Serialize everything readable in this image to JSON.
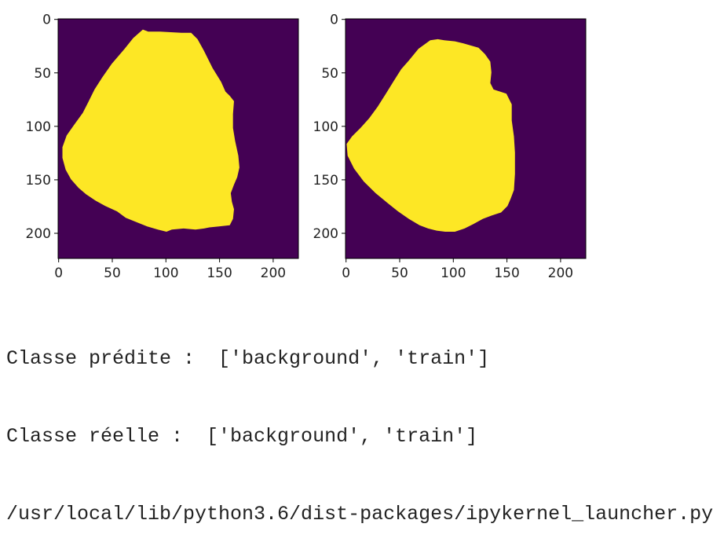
{
  "figure": {
    "image_size": 224,
    "background_color": "#440154",
    "mask_color": "#fde725",
    "panels": [
      {
        "name": "predicted-mask",
        "mask_polygon": [
          [
            79,
            10
          ],
          [
            84,
            12
          ],
          [
            95,
            12
          ],
          [
            115,
            13
          ],
          [
            124,
            13
          ],
          [
            130,
            19
          ],
          [
            136,
            30
          ],
          [
            144,
            46
          ],
          [
            152,
            59
          ],
          [
            156,
            68
          ],
          [
            160,
            72
          ],
          [
            164,
            77
          ],
          [
            163,
            89
          ],
          [
            163,
            102
          ],
          [
            165,
            114
          ],
          [
            168,
            128
          ],
          [
            169,
            139
          ],
          [
            167,
            148
          ],
          [
            164,
            155
          ],
          [
            161,
            163
          ],
          [
            162,
            171
          ],
          [
            164,
            178
          ],
          [
            163,
            187
          ],
          [
            160,
            193
          ],
          [
            150,
            194
          ],
          [
            141,
            195
          ],
          [
            136,
            196
          ],
          [
            128,
            197
          ],
          [
            117,
            196
          ],
          [
            106,
            197
          ],
          [
            101,
            199
          ],
          [
            93,
            197
          ],
          [
            83,
            194
          ],
          [
            73,
            190
          ],
          [
            63,
            186
          ],
          [
            55,
            180
          ],
          [
            44,
            175
          ],
          [
            35,
            170
          ],
          [
            26,
            164
          ],
          [
            19,
            158
          ],
          [
            12,
            150
          ],
          [
            7,
            141
          ],
          [
            4,
            130
          ],
          [
            4,
            120
          ],
          [
            8,
            109
          ],
          [
            15,
            99
          ],
          [
            23,
            88
          ],
          [
            28,
            78
          ],
          [
            34,
            66
          ],
          [
            41,
            55
          ],
          [
            50,
            42
          ],
          [
            62,
            28
          ],
          [
            70,
            18
          ]
        ]
      },
      {
        "name": "true-mask",
        "mask_polygon": [
          [
            79,
            20
          ],
          [
            86,
            19
          ],
          [
            92,
            20
          ],
          [
            102,
            21
          ],
          [
            110,
            23
          ],
          [
            117,
            25
          ],
          [
            124,
            27
          ],
          [
            130,
            33
          ],
          [
            135,
            40
          ],
          [
            136,
            50
          ],
          [
            135,
            60
          ],
          [
            138,
            66
          ],
          [
            150,
            70
          ],
          [
            155,
            80
          ],
          [
            155,
            95
          ],
          [
            157,
            110
          ],
          [
            158,
            125
          ],
          [
            158,
            145
          ],
          [
            157,
            160
          ],
          [
            154,
            168
          ],
          [
            151,
            175
          ],
          [
            145,
            181
          ],
          [
            136,
            184
          ],
          [
            128,
            187
          ],
          [
            119,
            192
          ],
          [
            111,
            196
          ],
          [
            102,
            199
          ],
          [
            93,
            199
          ],
          [
            85,
            198
          ],
          [
            77,
            196
          ],
          [
            69,
            193
          ],
          [
            59,
            187
          ],
          [
            49,
            180
          ],
          [
            39,
            172
          ],
          [
            28,
            163
          ],
          [
            17,
            152
          ],
          [
            8,
            140
          ],
          [
            2,
            128
          ],
          [
            1,
            117
          ],
          [
            6,
            110
          ],
          [
            14,
            102
          ],
          [
            22,
            93
          ],
          [
            30,
            82
          ],
          [
            37,
            71
          ],
          [
            45,
            58
          ],
          [
            52,
            47
          ],
          [
            59,
            39
          ],
          [
            68,
            28
          ]
        ]
      }
    ],
    "axes": {
      "y_ticks": [
        0,
        50,
        100,
        150,
        200
      ],
      "x_ticks": [
        0,
        50,
        100,
        150,
        200
      ]
    }
  },
  "output": {
    "lines": [
      "Classe prédite :  ['background', 'train']",
      "Classe réelle :  ['background', 'train']",
      "/usr/local/lib/python3.6/dist-packages/ipykernel_launcher.py"
    ]
  }
}
